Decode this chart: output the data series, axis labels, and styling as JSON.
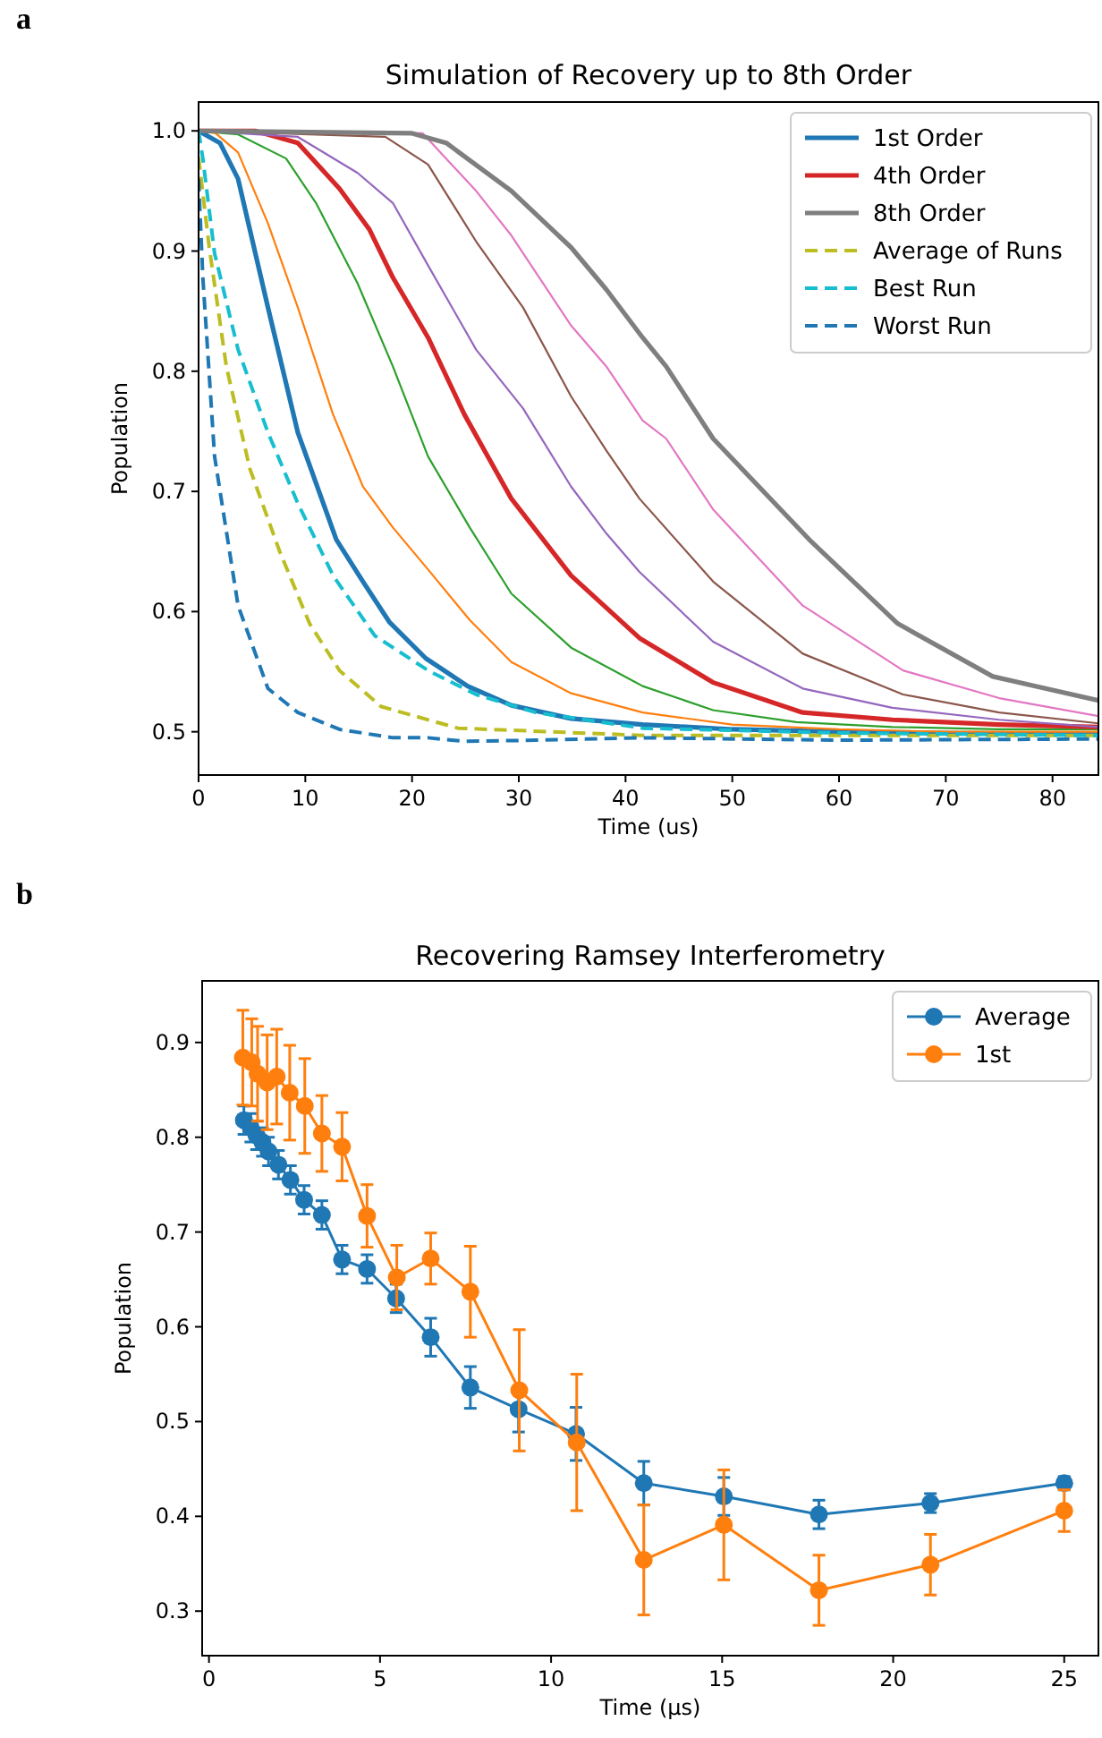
{
  "chart_data": [
    {
      "type": "line",
      "title": "Simulation of Recovery up to 8th Order",
      "xlabel": "Time (us)",
      "ylabel": "Population",
      "annotations": [
        "a"
      ],
      "xlim": [
        0,
        84.3
      ],
      "ylim": [
        0.464,
        1.024
      ],
      "xticks": [
        0,
        10,
        20,
        30,
        40,
        50,
        60,
        70,
        80
      ],
      "yticks": [
        {
          "value": 0.5,
          "label": "0.5"
        },
        {
          "value": 0.6,
          "label": "0.6"
        },
        {
          "value": 0.7,
          "label": "0.7"
        },
        {
          "value": 0.8,
          "label": "0.8"
        },
        {
          "value": 0.9,
          "label": "0.9"
        },
        {
          "value": 1,
          "label": "1.0"
        }
      ],
      "legend": "top right",
      "grid": false,
      "marker": "none",
      "line_style": "solid",
      "series": [
        {
          "name": "1st Order",
          "color": "#1f77b4",
          "x": [
            0,
            2,
            3.7,
            6.5,
            9.3,
            12.9,
            15.4,
            17.9,
            21.3,
            25.2,
            29.3,
            34.9,
            41.6,
            50,
            60,
            70,
            84.3
          ],
          "values": [
            1.0,
            0.99,
            0.96,
            0.853,
            0.749,
            0.66,
            0.625,
            0.591,
            0.561,
            0.538,
            0.522,
            0.511,
            0.506,
            0.502,
            0.5,
            0.499,
            0.498
          ]
        },
        {
          "color": "#ff7f0e",
          "x": [
            0,
            1.6,
            3.7,
            6.5,
            9.3,
            12.6,
            15.4,
            18.2,
            21.5,
            25.4,
            29.3,
            34.9,
            41.6,
            50,
            60,
            70,
            84.3
          ],
          "values": [
            1.0,
            0.998,
            0.982,
            0.923,
            0.853,
            0.764,
            0.704,
            0.67,
            0.635,
            0.593,
            0.558,
            0.532,
            0.516,
            0.506,
            0.502,
            0.5,
            0.5
          ]
        },
        {
          "color": "#2ca02c",
          "x": [
            0,
            3.7,
            8.2,
            11,
            14.9,
            18.2,
            21.5,
            25.4,
            29.3,
            34.9,
            41.6,
            48.2,
            56,
            65,
            75,
            84.3
          ],
          "values": [
            1.0,
            0.997,
            0.977,
            0.94,
            0.873,
            0.804,
            0.729,
            0.67,
            0.615,
            0.57,
            0.538,
            0.518,
            0.508,
            0.504,
            0.502,
            0.502
          ]
        },
        {
          "name": "4th Order",
          "color": "#d62728",
          "x": [
            0,
            5.3,
            9.3,
            13.2,
            16,
            18.2,
            21.5,
            24.9,
            29.3,
            34.9,
            41.3,
            48.2,
            56.6,
            65,
            75,
            84.3
          ],
          "values": [
            1.0,
            1.0,
            0.99,
            0.952,
            0.918,
            0.878,
            0.828,
            0.764,
            0.694,
            0.63,
            0.578,
            0.541,
            0.516,
            0.51,
            0.506,
            0.504
          ]
        },
        {
          "color": "#9467bd",
          "x": [
            0,
            9.3,
            14.9,
            18.2,
            21.5,
            26,
            30.4,
            34.9,
            38.2,
            41.3,
            48.2,
            56.6,
            65,
            75,
            84.3
          ],
          "values": [
            1.0,
            0.995,
            0.965,
            0.94,
            0.888,
            0.818,
            0.769,
            0.704,
            0.665,
            0.633,
            0.575,
            0.536,
            0.52,
            0.51,
            0.504
          ]
        },
        {
          "color": "#8c564b",
          "x": [
            0,
            17.5,
            21.5,
            26,
            30.4,
            34.9,
            38.2,
            41.3,
            48.2,
            56.6,
            66,
            75,
            84.3
          ],
          "values": [
            1.0,
            0.995,
            0.972,
            0.908,
            0.853,
            0.779,
            0.734,
            0.694,
            0.625,
            0.565,
            0.531,
            0.516,
            0.507
          ]
        },
        {
          "color": "#e377c2",
          "x": [
            0,
            21,
            26,
            29.3,
            34.9,
            38.2,
            41.6,
            43.8,
            48.2,
            56.6,
            66,
            75,
            84.3
          ],
          "values": [
            1.0,
            0.998,
            0.95,
            0.913,
            0.838,
            0.804,
            0.759,
            0.744,
            0.685,
            0.605,
            0.551,
            0.528,
            0.513
          ]
        },
        {
          "name": "8th Order",
          "color": "#7f7f7f",
          "x": [
            0,
            20,
            23.2,
            29.3,
            34.9,
            38.2,
            41.6,
            43.8,
            48.2,
            57.2,
            65.5,
            74.4,
            84.3
          ],
          "values": [
            1.0,
            0.998,
            0.99,
            0.95,
            0.903,
            0.868,
            0.828,
            0.804,
            0.744,
            0.66,
            0.59,
            0.546,
            0.526
          ]
        },
        {
          "name": "Average of Runs",
          "color": "#bcbd22",
          "line_style": "dashed",
          "x": [
            0,
            1,
            2.6,
            4.8,
            7.6,
            10.4,
            13.2,
            17.1,
            24.3,
            41.6,
            60,
            84.3
          ],
          "values": [
            0.978,
            0.903,
            0.804,
            0.719,
            0.65,
            0.59,
            0.551,
            0.521,
            0.503,
            0.497,
            0.497,
            0.497
          ]
        },
        {
          "name": "Best Run",
          "color": "#17becf",
          "line_style": "dashed",
          "x": [
            0,
            0.4,
            1.5,
            3.7,
            6.5,
            9.3,
            12.6,
            16.5,
            21.5,
            26,
            31.6,
            41.6,
            60,
            84.3
          ],
          "values": [
            1.0,
            0.977,
            0.898,
            0.818,
            0.749,
            0.69,
            0.63,
            0.58,
            0.551,
            0.531,
            0.516,
            0.503,
            0.499,
            0.497
          ]
        },
        {
          "name": "Worst Run",
          "color": "#1f77b4",
          "line_style": "dashed",
          "x": [
            0,
            0.4,
            1.5,
            3.7,
            6.5,
            9.3,
            13.2,
            18.2,
            21.5,
            24.9,
            31.6,
            41.6,
            60,
            84.3
          ],
          "values": [
            0.96,
            0.878,
            0.729,
            0.605,
            0.536,
            0.516,
            0.502,
            0.495,
            0.495,
            0.492,
            0.493,
            0.495,
            0.493,
            0.494
          ]
        }
      ]
    },
    {
      "type": "line",
      "title": "Recovering Ramsey Interferometry",
      "xlabel": "Time (μs)",
      "ylabel": "Population",
      "annotations": [
        "b"
      ],
      "xlim": [
        -0.2,
        26
      ],
      "ylim": [
        0.253,
        0.965
      ],
      "xticks": [
        0,
        5,
        10,
        15,
        20,
        25
      ],
      "yticks": [
        0.3,
        0.4,
        0.5,
        0.6,
        0.7,
        0.8,
        0.9
      ],
      "legend": "top right",
      "grid": false,
      "marker": "circle",
      "line_style": "solid",
      "series": [
        {
          "name": "Average",
          "color": "#1f77b4",
          "x": [
            1.02,
            1.22,
            1.39,
            1.56,
            1.74,
            2.03,
            2.38,
            2.78,
            3.3,
            3.89,
            4.62,
            5.47,
            6.48,
            7.64,
            9.05,
            10.73,
            12.71,
            15.05,
            17.83,
            21.09,
            25
          ],
          "values": [
            0.818,
            0.81,
            0.802,
            0.795,
            0.785,
            0.771,
            0.755,
            0.734,
            0.718,
            0.671,
            0.661,
            0.63,
            0.589,
            0.536,
            0.513,
            0.487,
            0.435,
            0.421,
            0.402,
            0.414,
            0.435
          ],
          "errors": [
            0.015,
            0.015,
            0.015,
            0.015,
            0.015,
            0.015,
            0.015,
            0.015,
            0.015,
            0.015,
            0.015,
            0.015,
            0.02,
            0.022,
            0.024,
            0.028,
            0.023,
            0.02,
            0.015,
            0.01,
            0.007
          ]
        },
        {
          "name": "1st",
          "color": "#ff7f0e",
          "x": [
            0.99,
            1.25,
            1.42,
            1.7,
            1.98,
            2.36,
            2.8,
            3.3,
            3.89,
            4.62,
            5.49,
            6.48,
            7.64,
            9.07,
            10.75,
            12.71,
            15.05,
            17.83,
            21.09,
            25
          ],
          "values": [
            0.884,
            0.879,
            0.867,
            0.858,
            0.864,
            0.847,
            0.833,
            0.804,
            0.79,
            0.717,
            0.652,
            0.672,
            0.637,
            0.533,
            0.478,
            0.354,
            0.391,
            0.322,
            0.349,
            0.406
          ],
          "errors": [
            0.05,
            0.046,
            0.05,
            0.05,
            0.05,
            0.05,
            0.05,
            0.04,
            0.036,
            0.033,
            0.034,
            0.027,
            0.048,
            0.064,
            0.072,
            0.058,
            0.058,
            0.037,
            0.032,
            0.022
          ]
        }
      ]
    }
  ]
}
